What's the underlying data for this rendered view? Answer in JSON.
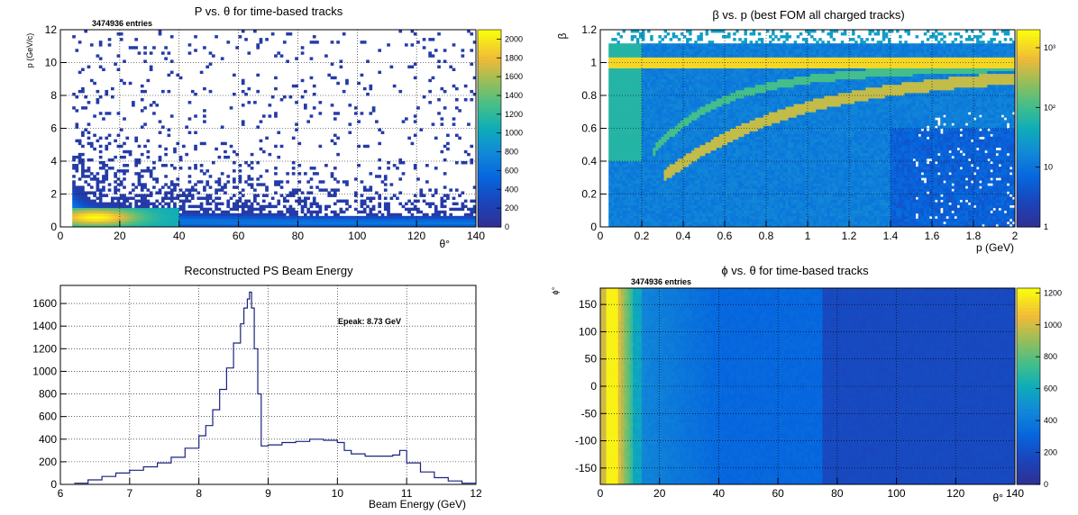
{
  "chart_data": [
    {
      "id": "p-vs-theta",
      "type": "heatmap",
      "title": "P vs. θ for time-based tracks",
      "entries_label": "3474936 entries",
      "xlabel": "θ°",
      "ylabel": "p (GeV/c)",
      "xlim": [
        0,
        140
      ],
      "ylim": [
        0,
        12
      ],
      "x_ticks": [
        "0",
        "20",
        "40",
        "60",
        "80",
        "100",
        "120",
        "140"
      ],
      "y_ticks": [
        "0",
        "2",
        "4",
        "6",
        "8",
        "10",
        "12"
      ],
      "z_ticks": [
        "0",
        "200",
        "400",
        "600",
        "800",
        "1000",
        "1200",
        "1400",
        "1600",
        "1800",
        "2000"
      ],
      "zlim": [
        0,
        2100
      ],
      "grid": true
    },
    {
      "id": "beta-vs-p",
      "type": "heatmap",
      "title": "β vs. p (best FOM all charged tracks)",
      "xlabel": "p (GeV)",
      "ylabel": "β",
      "xlim": [
        0,
        2
      ],
      "ylim": [
        0,
        1.2
      ],
      "x_ticks": [
        "0",
        "0.2",
        "0.4",
        "0.6",
        "0.8",
        "1",
        "1.2",
        "1.4",
        "1.6",
        "1.8",
        "2"
      ],
      "y_ticks": [
        "0",
        "0.2",
        "0.4",
        "0.6",
        "0.8",
        "1",
        "1.2"
      ],
      "z_scale": "log",
      "z_ticks": [
        "1",
        "10",
        "10²",
        "10³"
      ],
      "grid": true
    },
    {
      "id": "ps-beam-energy",
      "type": "line",
      "title": "Reconstructed PS Beam Energy",
      "annotation": "Epeak: 8.73 GeV",
      "xlabel": "Beam Energy (GeV)",
      "ylabel": "",
      "xlim": [
        6,
        12
      ],
      "ylim": [
        0,
        1760
      ],
      "x_ticks": [
        "6",
        "7",
        "8",
        "9",
        "10",
        "11",
        "12"
      ],
      "y_ticks": [
        "0",
        "200",
        "400",
        "600",
        "800",
        "1000",
        "1200",
        "1400",
        "1600"
      ],
      "grid": true,
      "series": [
        {
          "x": [
            6.2,
            6.4,
            6.6,
            6.8,
            7.0,
            7.2,
            7.4,
            7.6,
            7.8,
            8.0,
            8.1,
            8.2,
            8.3,
            8.4,
            8.5,
            8.6,
            8.65,
            8.7,
            8.73,
            8.76,
            8.8,
            8.85,
            8.9,
            9.0,
            9.2,
            9.4,
            9.6,
            9.8,
            10.0,
            10.1,
            10.2,
            10.4,
            10.6,
            10.8,
            10.9,
            11.0,
            11.2,
            11.4,
            11.6,
            11.8,
            12.0
          ],
          "y": [
            10,
            40,
            70,
            100,
            125,
            155,
            190,
            240,
            320,
            430,
            520,
            660,
            840,
            1030,
            1250,
            1420,
            1560,
            1640,
            1700,
            1560,
            1200,
            800,
            340,
            350,
            370,
            380,
            400,
            390,
            370,
            300,
            270,
            250,
            250,
            260,
            300,
            190,
            110,
            60,
            30,
            10,
            0
          ]
        }
      ]
    },
    {
      "id": "phi-vs-theta",
      "type": "heatmap",
      "title": "ϕ vs. θ for time-based tracks",
      "entries_label": "3474936 entries",
      "xlabel": "θ°",
      "ylabel": "ϕ°",
      "xlim": [
        0,
        140
      ],
      "ylim": [
        -180,
        180
      ],
      "x_ticks": [
        "0",
        "20",
        "40",
        "60",
        "80",
        "100",
        "120",
        "140"
      ],
      "y_ticks": [
        "-150",
        "-100",
        "-50",
        "0",
        "50",
        "100",
        "150"
      ],
      "z_ticks": [
        "0",
        "200",
        "400",
        "600",
        "800",
        "1000",
        "1200"
      ],
      "zlim": [
        0,
        1230
      ],
      "grid": true
    }
  ]
}
